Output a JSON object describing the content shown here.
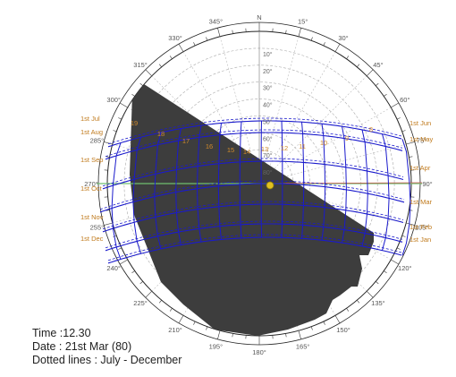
{
  "diagram": {
    "north_label": "N",
    "azimuth_labels": [
      "15°",
      "30°",
      "45°",
      "60°",
      "75°",
      "90°",
      "105°",
      "120°",
      "135°",
      "150°",
      "165°",
      "180°",
      "195°",
      "210°",
      "225°",
      "240°",
      "255°",
      "270°",
      "285°",
      "300°",
      "315°",
      "330°",
      "345°"
    ],
    "altitude_labels": [
      "10°",
      "20°",
      "30°",
      "40°",
      "50°",
      "60°",
      "70°",
      "80°"
    ],
    "date_labels_right": [
      "1st Jun",
      "1st May",
      "1st Apr",
      "1st Mar",
      "1st Feb",
      "1st Jan"
    ],
    "date_labels_left": [
      "1st Jul",
      "1st Aug",
      "1st Sep",
      "1st Oct",
      "1st Nov",
      "1st Dec"
    ],
    "hour_labels": [
      "19",
      "18",
      "17",
      "16",
      "15",
      "14",
      "13",
      "12",
      "11",
      "10",
      "9",
      "8"
    ],
    "colors": {
      "sun_path": "#1a1acc",
      "shadow_mask": "#3d3d3d",
      "date_labels": "#c07a1c",
      "east_west_line": "#6fbf6f",
      "sun_marker": "#e0c020",
      "grid": "#aaaaaa"
    }
  },
  "info": {
    "time": "Time :12.30",
    "date": "Date : 21st Mar (80)",
    "legend": "Dotted lines : July - December"
  }
}
